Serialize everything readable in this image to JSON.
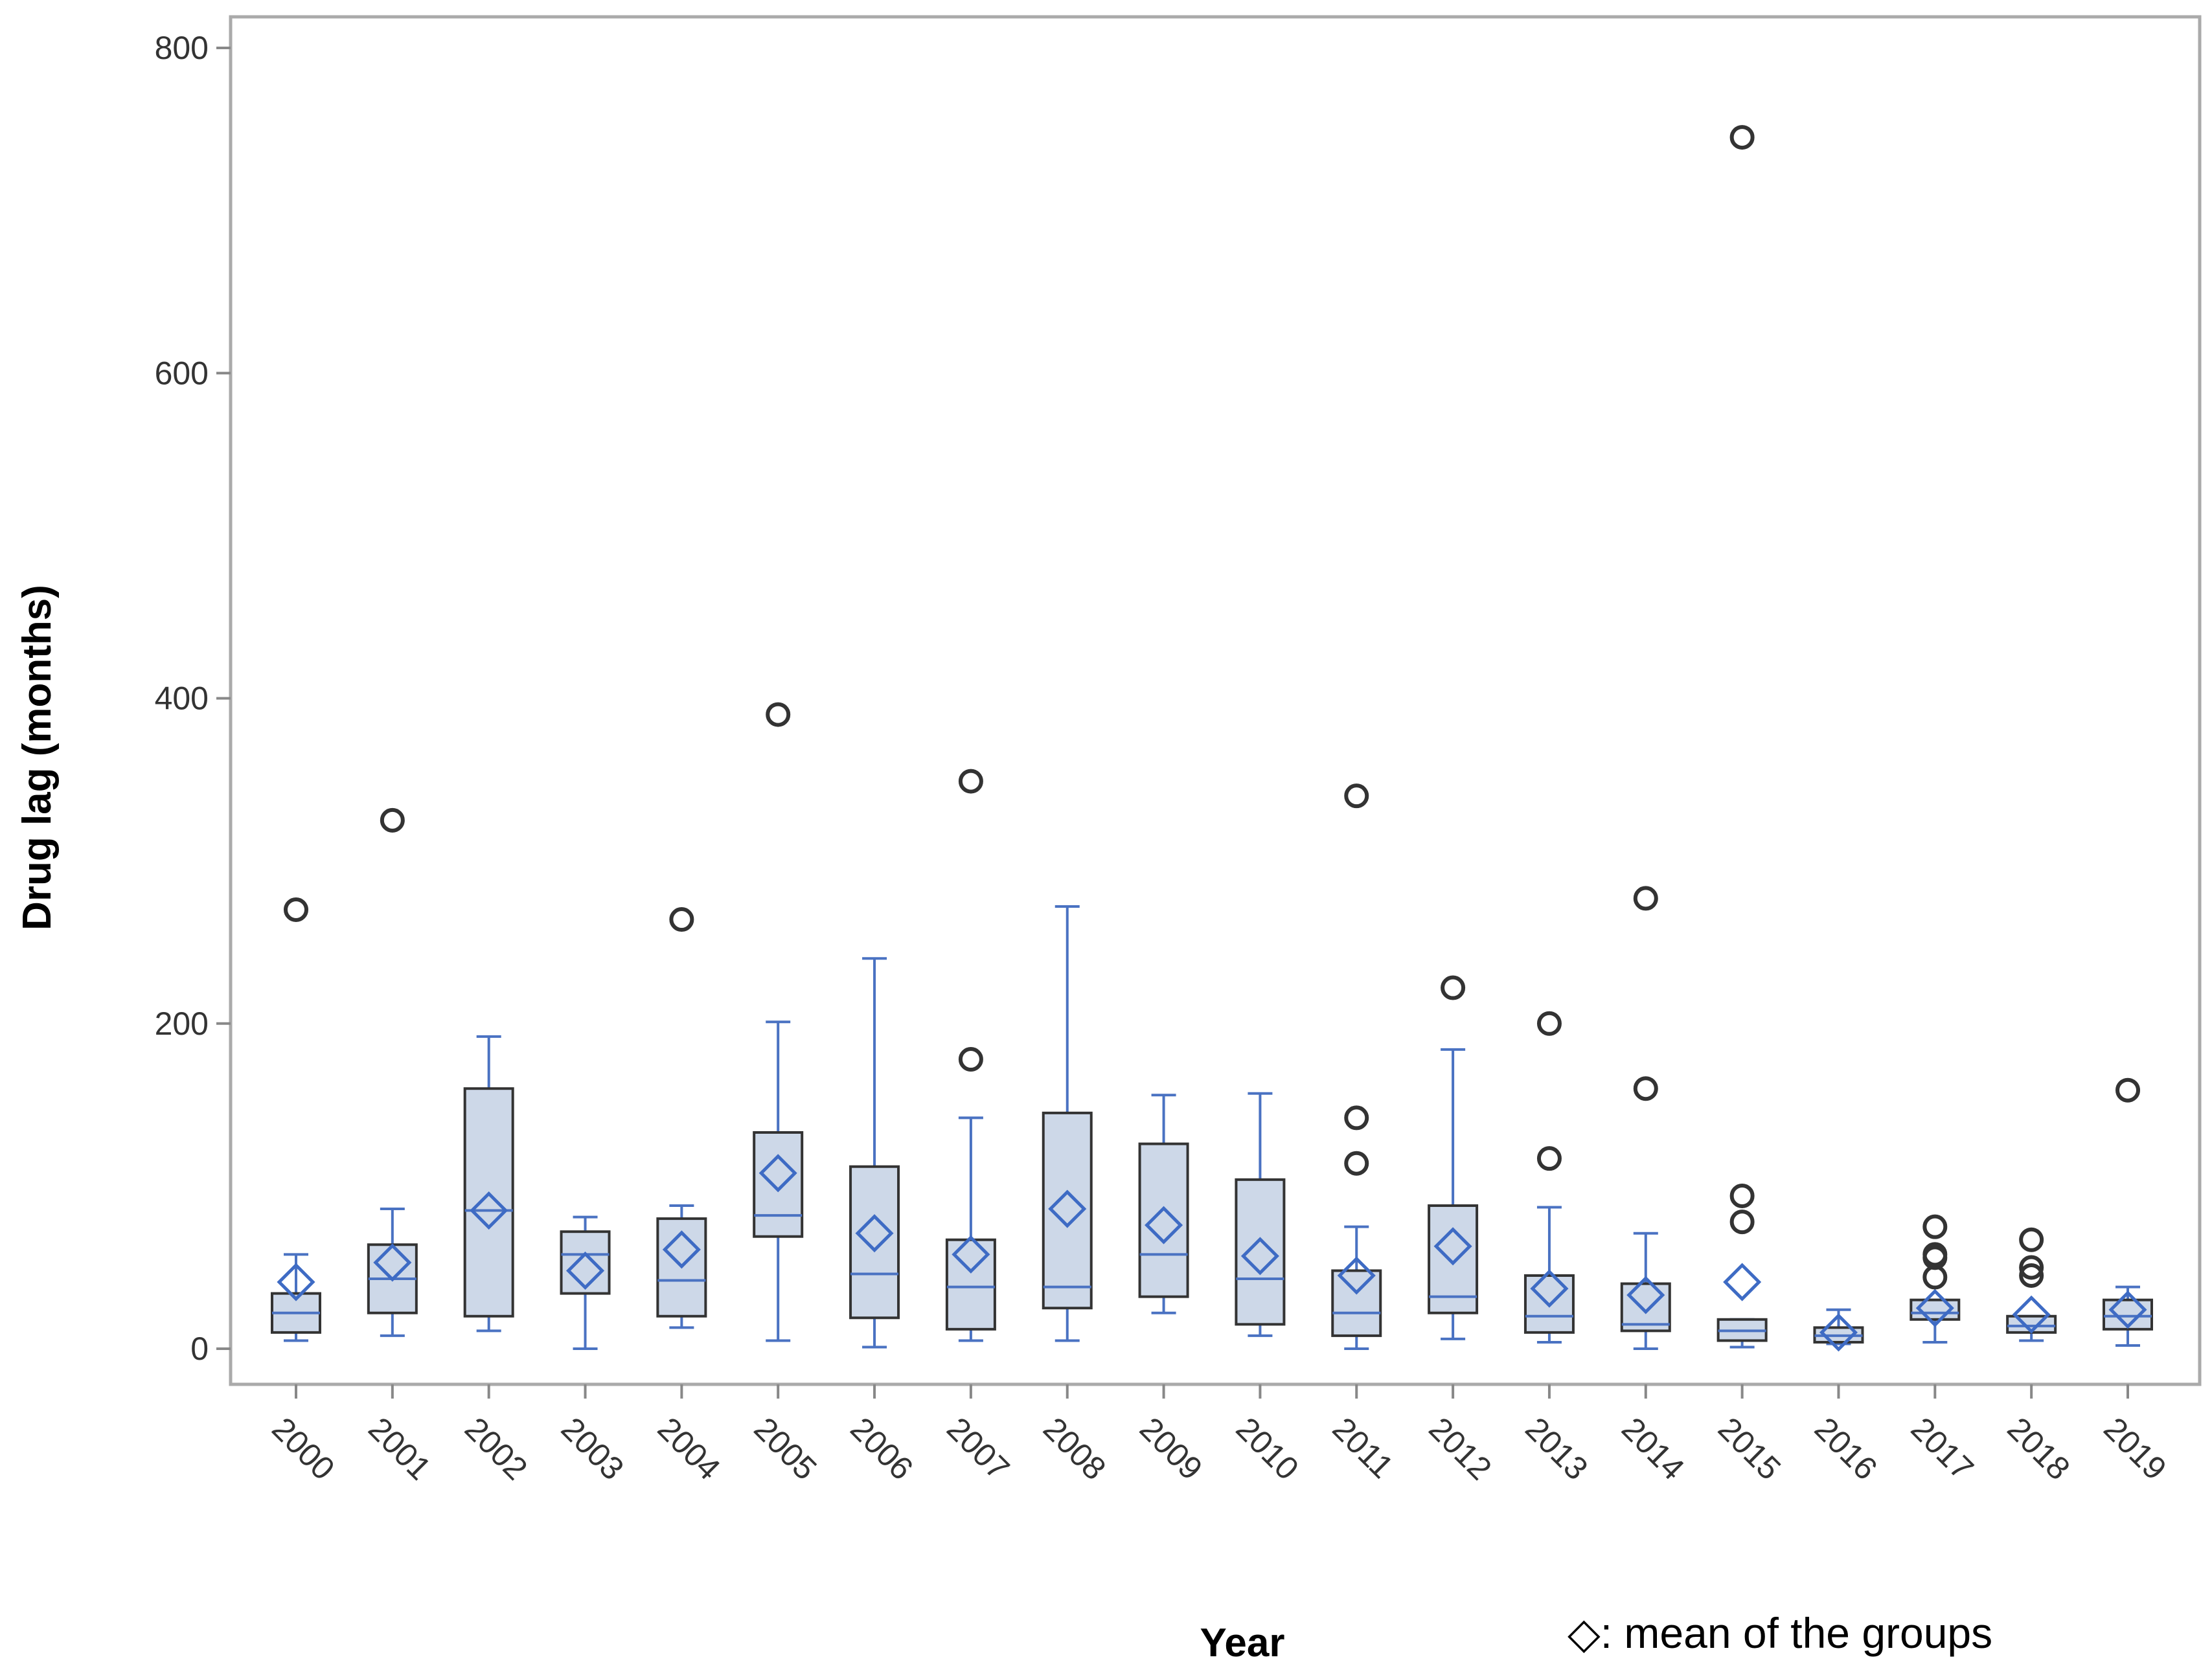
{
  "chart_data": {
    "type": "boxplot",
    "title": "",
    "xlabel": "Year",
    "ylabel": "Drug lag (months)",
    "ylim": [
      -20,
      820
    ],
    "yticks": [
      0,
      200,
      400,
      600,
      800
    ],
    "legend": {
      "text": "◇: mean of the groups",
      "position": "bottom-right"
    },
    "colors": {
      "box_fill": "#cdd8e8",
      "box_edge": "#333333",
      "whisker": "#4a72c2",
      "mean": "#3e6bc4",
      "outlier": "#333333",
      "frame": "#aaaaaa"
    },
    "categories": [
      "2000",
      "2001",
      "2002",
      "2003",
      "2004",
      "2005",
      "2006",
      "2007",
      "2008",
      "2009",
      "2010",
      "2011",
      "2012",
      "2013",
      "2014",
      "2015",
      "2016",
      "2017",
      "2018",
      "2019"
    ],
    "boxes": [
      {
        "year": "2000",
        "min": 5,
        "q1": 10,
        "median": 22,
        "q3": 34,
        "max": 58,
        "mean": 41,
        "outliers": [
          270
        ]
      },
      {
        "year": "2001",
        "min": 8,
        "q1": 22,
        "median": 43,
        "q3": 64,
        "max": 86,
        "mean": 53,
        "outliers": [
          325
        ]
      },
      {
        "year": "2002",
        "min": 11,
        "q1": 20,
        "median": 85,
        "q3": 160,
        "max": 192,
        "mean": 85,
        "outliers": []
      },
      {
        "year": "2003",
        "min": 0,
        "q1": 34,
        "median": 58,
        "q3": 72,
        "max": 81,
        "mean": 48,
        "outliers": []
      },
      {
        "year": "2004",
        "min": 13,
        "q1": 20,
        "median": 42,
        "q3": 80,
        "max": 88,
        "mean": 61,
        "outliers": [
          264
        ]
      },
      {
        "year": "2005",
        "min": 5,
        "q1": 69,
        "median": 82,
        "q3": 133,
        "max": 201,
        "mean": 108,
        "outliers": [
          390
        ]
      },
      {
        "year": "2006",
        "min": 1,
        "q1": 19,
        "median": 46,
        "q3": 112,
        "max": 240,
        "mean": 71,
        "outliers": []
      },
      {
        "year": "2007",
        "min": 5,
        "q1": 12,
        "median": 38,
        "q3": 67,
        "max": 142,
        "mean": 58,
        "outliers": [
          178,
          349
        ]
      },
      {
        "year": "2008",
        "min": 5,
        "q1": 25,
        "median": 38,
        "q3": 145,
        "max": 272,
        "mean": 86,
        "outliers": []
      },
      {
        "year": "2009",
        "min": 22,
        "q1": 32,
        "median": 58,
        "q3": 126,
        "max": 156,
        "mean": 76,
        "outliers": []
      },
      {
        "year": "2010",
        "min": 8,
        "q1": 15,
        "median": 43,
        "q3": 104,
        "max": 157,
        "mean": 57,
        "outliers": []
      },
      {
        "year": "2011",
        "min": 0,
        "q1": 8,
        "median": 22,
        "q3": 48,
        "max": 75,
        "mean": 45,
        "outliers": [
          114,
          142,
          340
        ]
      },
      {
        "year": "2012",
        "min": 6,
        "q1": 22,
        "median": 32,
        "q3": 88,
        "max": 184,
        "mean": 63,
        "outliers": [
          222
        ]
      },
      {
        "year": "2013",
        "min": 4,
        "q1": 10,
        "median": 20,
        "q3": 45,
        "max": 87,
        "mean": 37,
        "outliers": [
          117,
          200
        ]
      },
      {
        "year": "2014",
        "min": 0,
        "q1": 11,
        "median": 15,
        "q3": 40,
        "max": 71,
        "mean": 33,
        "outliers": [
          160,
          277
        ]
      },
      {
        "year": "2015",
        "min": 1,
        "q1": 5,
        "median": 11,
        "q3": 18,
        "max": 18,
        "mean": 41,
        "outliers": [
          78,
          94,
          745
        ]
      },
      {
        "year": "2016",
        "min": 3,
        "q1": 4,
        "median": 8,
        "q3": 13,
        "max": 24,
        "mean": 10,
        "outliers": []
      },
      {
        "year": "2017",
        "min": 4,
        "q1": 18,
        "median": 22,
        "q3": 30,
        "max": 30,
        "mean": 25,
        "outliers": [
          44,
          56,
          58,
          75
        ]
      },
      {
        "year": "2018",
        "min": 5,
        "q1": 10,
        "median": 14,
        "q3": 20,
        "max": 20,
        "mean": 21,
        "outliers": [
          45,
          50,
          67
        ]
      },
      {
        "year": "2019",
        "min": 2,
        "q1": 12,
        "median": 20,
        "q3": 30,
        "max": 38,
        "mean": 24,
        "outliers": [
          159
        ]
      }
    ]
  }
}
